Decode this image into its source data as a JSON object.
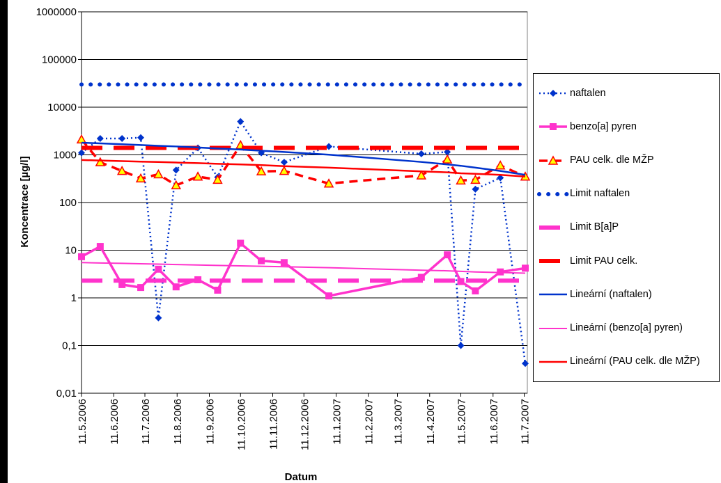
{
  "chart_data": {
    "type": "line",
    "y_label": "Koncentrace [µg/l]",
    "x_label": "Datum",
    "ylog": true,
    "grid": true,
    "legend": "right",
    "ylim": [
      0.01,
      1000000
    ],
    "yticks": [
      {
        "value": 0.01,
        "label": "0,01"
      },
      {
        "value": 0.1,
        "label": "0,1"
      },
      1,
      10,
      100,
      1000,
      10000,
      100000,
      1000000
    ],
    "xlim": [
      "2006-05-11",
      "2007-07-14"
    ],
    "xticks": [
      {
        "value": "2006-05-11",
        "label": "11.5.2006"
      },
      {
        "value": "2006-06-11",
        "label": "11.6.2006"
      },
      {
        "value": "2006-07-11",
        "label": "11.7.2006"
      },
      {
        "value": "2006-08-11",
        "label": "11.8.2006"
      },
      {
        "value": "2006-09-11",
        "label": "11.9.2006"
      },
      {
        "value": "2006-10-11",
        "label": "11.10.2006"
      },
      {
        "value": "2006-11-11",
        "label": "11.11.2006"
      },
      {
        "value": "2006-12-11",
        "label": "11.12.2006"
      },
      {
        "value": "2007-01-11",
        "label": "11.1.2007"
      },
      {
        "value": "2007-02-11",
        "label": "11.2.2007"
      },
      {
        "value": "2007-03-11",
        "label": "11.3.2007"
      },
      {
        "value": "2007-04-11",
        "label": "11.4.2007"
      },
      {
        "value": "2007-05-11",
        "label": "11.5.2007"
      },
      {
        "value": "2007-06-11",
        "label": "11.6.2007"
      },
      {
        "value": "2007-07-11",
        "label": "11.7.2007"
      }
    ],
    "x": [
      "2006-05-11",
      "2006-05-29",
      "2006-06-19",
      "2006-07-07",
      "2006-07-24",
      "2006-08-10",
      "2006-08-31",
      "2006-09-19",
      "2006-10-11",
      "2006-10-31",
      "2006-11-22",
      "2007-01-04",
      "2007-04-03",
      "2007-04-28",
      "2007-05-11",
      "2007-05-25",
      "2007-06-18",
      "2007-07-12"
    ],
    "series": [
      {
        "name": "naftalen",
        "color": "#0033cc",
        "style": "dotted",
        "width": 2.5,
        "marker": "diamond",
        "values": [
          1100,
          2200,
          2200,
          2300,
          0.38,
          480,
          1400,
          340,
          5000,
          1100,
          700,
          1500,
          1050,
          1150,
          0.1,
          190,
          330,
          0.042
        ]
      },
      {
        "name": "benzo[a]  pyren",
        "color": "#ff33cc",
        "style": "solid",
        "width": 3.5,
        "marker": "square",
        "values": [
          7.3,
          12,
          1.9,
          1.65,
          4,
          1.7,
          2.4,
          1.45,
          14,
          6,
          5.5,
          1.1,
          2.7,
          8,
          2.2,
          1.4,
          3.5,
          4.2
        ]
      },
      {
        "name": "PAU celk. dle MŽP",
        "color": "#ff0000",
        "style": "dashed",
        "width": 3.5,
        "marker": "triangle",
        "values": [
          2100,
          700,
          460,
          320,
          390,
          230,
          350,
          300,
          1600,
          450,
          460,
          250,
          370,
          800,
          290,
          300,
          600,
          350
        ]
      },
      {
        "name": "Limit naftalen",
        "color": "#0033cc",
        "style": "dots",
        "width": 6,
        "marker": null,
        "values": [
          30000,
          30000,
          30000,
          30000,
          30000,
          30000,
          30000,
          30000,
          30000,
          30000,
          30000,
          30000,
          30000,
          30000,
          30000,
          30000,
          30000,
          30000
        ]
      },
      {
        "name": "Limit B[a]P",
        "color": "#ff33cc",
        "style": "longdash",
        "width": 6,
        "marker": null,
        "values": [
          2.3,
          2.3,
          2.3,
          2.3,
          2.3,
          2.3,
          2.3,
          2.3,
          2.3,
          2.3,
          2.3,
          2.3,
          2.3,
          2.3,
          2.3,
          2.3,
          2.3,
          2.3
        ]
      },
      {
        "name": "Limit PAU celk.",
        "color": "#ff0000",
        "style": "longdash",
        "width": 6,
        "marker": null,
        "values": [
          1400,
          1400,
          1400,
          1400,
          1400,
          1400,
          1400,
          1400,
          1400,
          1400,
          1400,
          1400,
          1400,
          1400,
          1400,
          1400,
          1400,
          1400
        ]
      },
      {
        "name": "Lineární (naftalen)",
        "color": "#0033cc",
        "style": "solid",
        "width": 2.5,
        "marker": null,
        "values": [
          1800,
          1740,
          1670,
          1610,
          1550,
          1500,
          1430,
          1360,
          1290,
          1220,
          1150,
          1010,
          710,
          630,
          590,
          540,
          460,
          380
        ]
      },
      {
        "name": "Lineární (benzo[a] pyren)",
        "color": "#ff33cc",
        "style": "solid",
        "width": 2,
        "marker": null,
        "values": [
          5.5,
          5.4,
          5.3,
          5.2,
          5.1,
          5.0,
          4.9,
          4.8,
          4.7,
          4.6,
          4.5,
          4.3,
          3.8,
          3.7,
          3.6,
          3.5,
          3.4,
          3.3
        ]
      },
      {
        "name": "Lineární (PAU celk. dle MŽP)",
        "color": "#ff0000",
        "style": "solid",
        "width": 2.5,
        "marker": null,
        "values": [
          780,
          760,
          740,
          720,
          710,
          690,
          670,
          650,
          630,
          610,
          580,
          540,
          450,
          430,
          410,
          400,
          380,
          350
        ]
      }
    ]
  }
}
